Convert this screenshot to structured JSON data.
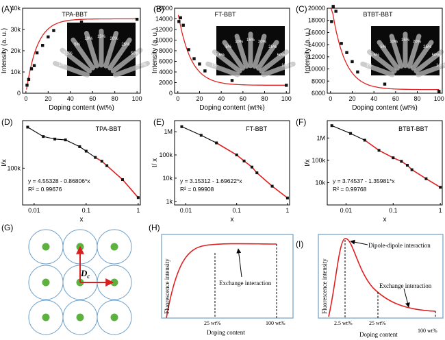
{
  "chart_data": [
    {
      "panel": "(A)",
      "type": "scatter",
      "title": "TPA-BBT",
      "xlabel": "Doping content (wt%)",
      "ylabel": "Intensity (a. u.)",
      "xlim": [
        -3,
        103
      ],
      "ylim": [
        0,
        40000
      ],
      "xticks": [
        0,
        20,
        40,
        60,
        80,
        100
      ],
      "yticks": [
        0,
        10000,
        20000,
        30000,
        40000
      ],
      "yticklabels": [
        "0",
        "10k",
        "20k",
        "30k",
        "40k"
      ],
      "x": [
        1,
        2.5,
        5,
        7.5,
        10,
        15,
        20,
        25,
        50,
        100
      ],
      "y": [
        3800,
        6500,
        11500,
        13000,
        19000,
        22500,
        26500,
        29500,
        33500,
        34800
      ],
      "fit": {
        "type": "saturation",
        "color": "#e02020",
        "ymax": 35000,
        "k": 0.1
      },
      "inset_labels": [
        "1%",
        "2.5%",
        "5%",
        "10%",
        "15%",
        "20%",
        "25%",
        "50%",
        "100%"
      ]
    },
    {
      "panel": "(B)",
      "type": "scatter",
      "title": "FT-BBT",
      "xlabel": "Doping content (wt%)",
      "ylabel": "Intensity (a. u.)",
      "xlim": [
        -3,
        103
      ],
      "ylim": [
        0,
        16000
      ],
      "xticks": [
        0,
        20,
        40,
        60,
        80,
        100
      ],
      "yticks": [
        0,
        2000,
        4000,
        6000,
        8000,
        10000,
        12000,
        14000,
        16000
      ],
      "x": [
        1,
        2.5,
        5,
        10,
        15,
        20,
        25,
        50,
        100
      ],
      "y": [
        13500,
        14200,
        12800,
        8200,
        6500,
        5500,
        4200,
        2400,
        1500
      ],
      "fit": {
        "type": "decay",
        "color": "#e02020",
        "y0": 1500,
        "a": 13800,
        "k": 0.085
      },
      "inset_labels": [
        "1%",
        "2.5%",
        "5%",
        "10%",
        "15%",
        "20%",
        "25%",
        "50%",
        "100%"
      ]
    },
    {
      "panel": "(C)",
      "type": "scatter",
      "title": "BTBT-BBT",
      "xlabel": "Doping content (wt%)",
      "ylabel": "Intensity (a. u.)",
      "xlim": [
        -3,
        103
      ],
      "ylim": [
        6000,
        20000
      ],
      "xticks": [
        0,
        20,
        40,
        60,
        80,
        100
      ],
      "yticks": [
        6000,
        8000,
        10000,
        12000,
        14000,
        16000,
        18000,
        20000
      ],
      "x": [
        1,
        2.5,
        5,
        10,
        15,
        20,
        25,
        50,
        100
      ],
      "y": [
        17800,
        20300,
        19500,
        14200,
        12700,
        11200,
        9500,
        7500,
        6300
      ],
      "fit": {
        "type": "decay",
        "color": "#e02020",
        "y0": 6600,
        "a": 15000,
        "k": 0.085
      },
      "inset_labels": [
        "1%",
        "2.5%",
        "5%",
        "10%",
        "15%",
        "20%",
        "25%",
        "50%",
        "100%"
      ]
    },
    {
      "panel": "(D)",
      "type": "line",
      "title": "TPA-BBT",
      "scale": "log-log",
      "xlabel": "x",
      "ylabel": "I/x",
      "xlim": [
        0.006,
        1.1
      ],
      "ylim": [
        25000,
        600000
      ],
      "xticks": [
        0.01,
        0.1,
        1
      ],
      "xticklabels": [
        "0.01",
        "0.1",
        "1"
      ],
      "yticks": [
        100000
      ],
      "yticklabels": [
        "100k"
      ],
      "x": [
        0.0075,
        0.015,
        0.025,
        0.04,
        0.075,
        0.1,
        0.15,
        0.2,
        0.25,
        0.5,
        1
      ],
      "y": [
        470000,
        330000,
        300000,
        290000,
        225000,
        190000,
        150000,
        130000,
        110000,
        65000,
        33000
      ],
      "fit_line": {
        "x": [
          0.15,
          1
        ],
        "color": "#e02020"
      },
      "equation": "y = 4.55328 - 0.86806*x",
      "r2": "R² = 0.99676"
    },
    {
      "panel": "(E)",
      "type": "line",
      "title": "FT-BBT",
      "scale": "log-log",
      "xlabel": "x",
      "ylabel": "I/ x",
      "xlim": [
        0.006,
        1.1
      ],
      "ylim": [
        700,
        3000000
      ],
      "xticks": [
        0.01,
        0.1,
        1
      ],
      "xticklabels": [
        "0.01",
        "0.1",
        "1"
      ],
      "yticks": [
        1000,
        10000,
        100000,
        1000000
      ],
      "yticklabels": [
        "1k",
        "10k",
        "100k",
        "1M"
      ],
      "x": [
        0.0083,
        0.02,
        0.04,
        0.1,
        0.14,
        0.2,
        0.25,
        0.5,
        1
      ],
      "y": [
        1650000,
        700000,
        330000,
        100000,
        55000,
        30000,
        17000,
        4500,
        1400
      ],
      "fit_line": {
        "x": [
          0.04,
          1
        ],
        "color": "#e02020"
      },
      "equation": "y = 3.15312 - 1.69622*x",
      "r2": "R² = 0.99908"
    },
    {
      "panel": "(F)",
      "type": "line",
      "title": "BTBT-BBT",
      "scale": "log-log",
      "xlabel": "x",
      "ylabel": "I/x",
      "xlim": [
        0.004,
        1.1
      ],
      "ylim": [
        1000,
        6000000
      ],
      "xticks": [
        0.01,
        0.1,
        1
      ],
      "xticklabels": [
        "0.01",
        "0.1",
        "1"
      ],
      "yticks": [
        10000,
        100000,
        1000000
      ],
      "yticklabels": [
        "10k",
        "100k",
        "1M"
      ],
      "x": [
        0.005,
        0.0125,
        0.025,
        0.05,
        0.1,
        0.15,
        0.2,
        0.25,
        0.5,
        1
      ],
      "y": [
        3600000,
        1600000,
        800000,
        280000,
        130000,
        90000,
        60000,
        38000,
        15000,
        6200
      ],
      "fit_line": {
        "x": [
          0.025,
          1
        ],
        "color": "#e02020"
      },
      "equation": "y = 3.74537 - 1.35981*x",
      "r2": "R² = 0.99768"
    }
  ],
  "panels": {
    "g": {
      "label": "(G)",
      "dc_label": "D",
      "dc_sub": "c"
    },
    "h": {
      "label": "(H)",
      "ylabel": "Fluorescence intensity",
      "xlabel": "Doping content",
      "annotation": "Exchange interaction",
      "tick_left": "25 wt%",
      "tick_right": "100 wt%"
    },
    "i": {
      "label": "(I)",
      "ylabel": "Fluorescence intensity",
      "xlabel": "Doping content",
      "annotation_top": "Dipole-dipole interaction",
      "annotation_bottom": "Exchange interaction",
      "tick_1": "2.5 wt%",
      "tick_2": "25 wt%",
      "tick_3": "100 wt%"
    }
  },
  "colors": {
    "fit": "#e02020",
    "marker": "#111111",
    "circle": "#6a9ec9",
    "dot": "#5db13f",
    "arrow": "#d82020",
    "frame": "#7aa6c8"
  }
}
